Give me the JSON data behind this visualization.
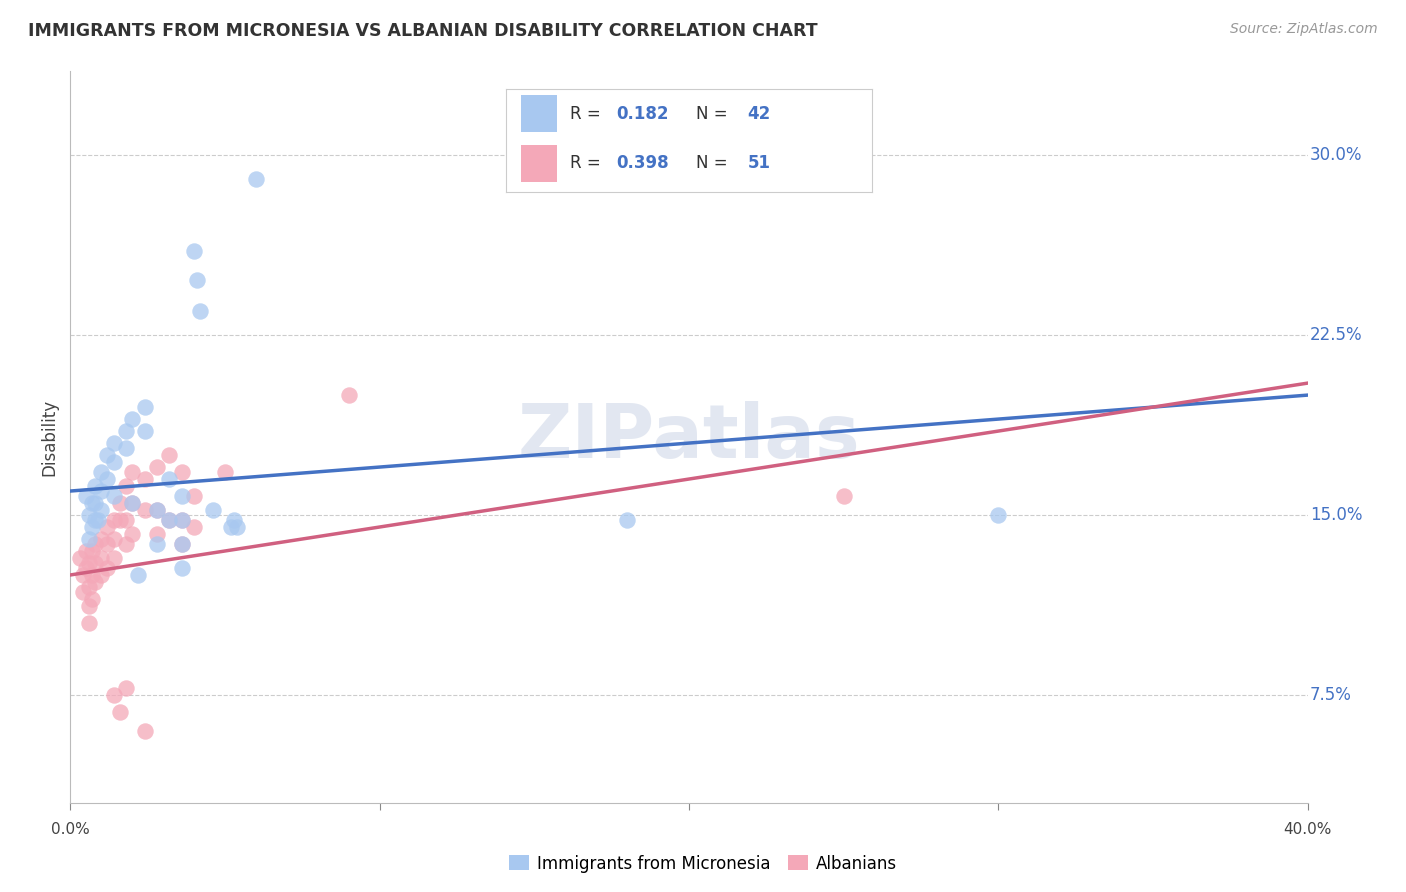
{
  "title": "IMMIGRANTS FROM MICRONESIA VS ALBANIAN DISABILITY CORRELATION CHART",
  "source": "Source: ZipAtlas.com",
  "ylabel": "Disability",
  "yticks": [
    0.075,
    0.15,
    0.225,
    0.3
  ],
  "ytick_labels": [
    "7.5%",
    "15.0%",
    "22.5%",
    "30.0%"
  ],
  "xlim": [
    0.0,
    0.4
  ],
  "ylim": [
    0.03,
    0.335
  ],
  "legend_blue_r": "0.182",
  "legend_blue_n": "42",
  "legend_pink_r": "0.398",
  "legend_pink_n": "51",
  "blue_color": "#a8c8f0",
  "pink_color": "#f4a8b8",
  "blue_line_color": "#4472c4",
  "pink_line_color": "#d06080",
  "blue_scatter": [
    [
      0.005,
      0.158
    ],
    [
      0.006,
      0.15
    ],
    [
      0.007,
      0.155
    ],
    [
      0.007,
      0.145
    ],
    [
      0.008,
      0.162
    ],
    [
      0.008,
      0.155
    ],
    [
      0.008,
      0.148
    ],
    [
      0.01,
      0.168
    ],
    [
      0.01,
      0.16
    ],
    [
      0.01,
      0.152
    ],
    [
      0.012,
      0.175
    ],
    [
      0.012,
      0.165
    ],
    [
      0.014,
      0.18
    ],
    [
      0.014,
      0.172
    ],
    [
      0.014,
      0.158
    ],
    [
      0.018,
      0.185
    ],
    [
      0.018,
      0.178
    ],
    [
      0.02,
      0.19
    ],
    [
      0.02,
      0.155
    ],
    [
      0.024,
      0.195
    ],
    [
      0.024,
      0.185
    ],
    [
      0.028,
      0.152
    ],
    [
      0.028,
      0.138
    ],
    [
      0.032,
      0.165
    ],
    [
      0.032,
      0.148
    ],
    [
      0.036,
      0.158
    ],
    [
      0.036,
      0.148
    ],
    [
      0.036,
      0.138
    ],
    [
      0.036,
      0.128
    ],
    [
      0.04,
      0.26
    ],
    [
      0.041,
      0.248
    ],
    [
      0.042,
      0.235
    ],
    [
      0.046,
      0.152
    ],
    [
      0.052,
      0.145
    ],
    [
      0.053,
      0.148
    ],
    [
      0.054,
      0.145
    ],
    [
      0.06,
      0.29
    ],
    [
      0.18,
      0.148
    ],
    [
      0.3,
      0.15
    ],
    [
      0.006,
      0.14
    ],
    [
      0.009,
      0.148
    ],
    [
      0.022,
      0.125
    ]
  ],
  "pink_scatter": [
    [
      0.003,
      0.132
    ],
    [
      0.004,
      0.125
    ],
    [
      0.004,
      0.118
    ],
    [
      0.005,
      0.135
    ],
    [
      0.006,
      0.13
    ],
    [
      0.006,
      0.12
    ],
    [
      0.006,
      0.112
    ],
    [
      0.007,
      0.135
    ],
    [
      0.007,
      0.125
    ],
    [
      0.007,
      0.115
    ],
    [
      0.008,
      0.138
    ],
    [
      0.008,
      0.13
    ],
    [
      0.008,
      0.122
    ],
    [
      0.01,
      0.14
    ],
    [
      0.01,
      0.132
    ],
    [
      0.01,
      0.125
    ],
    [
      0.012,
      0.145
    ],
    [
      0.012,
      0.138
    ],
    [
      0.012,
      0.128
    ],
    [
      0.014,
      0.148
    ],
    [
      0.014,
      0.14
    ],
    [
      0.014,
      0.132
    ],
    [
      0.016,
      0.155
    ],
    [
      0.016,
      0.148
    ],
    [
      0.018,
      0.162
    ],
    [
      0.018,
      0.148
    ],
    [
      0.018,
      0.138
    ],
    [
      0.02,
      0.168
    ],
    [
      0.02,
      0.155
    ],
    [
      0.02,
      0.142
    ],
    [
      0.024,
      0.165
    ],
    [
      0.024,
      0.152
    ],
    [
      0.028,
      0.17
    ],
    [
      0.028,
      0.152
    ],
    [
      0.028,
      0.142
    ],
    [
      0.032,
      0.175
    ],
    [
      0.032,
      0.148
    ],
    [
      0.036,
      0.168
    ],
    [
      0.036,
      0.148
    ],
    [
      0.036,
      0.138
    ],
    [
      0.04,
      0.158
    ],
    [
      0.04,
      0.145
    ],
    [
      0.05,
      0.168
    ],
    [
      0.014,
      0.075
    ],
    [
      0.016,
      0.068
    ],
    [
      0.018,
      0.078
    ],
    [
      0.024,
      0.06
    ],
    [
      0.09,
      0.2
    ],
    [
      0.25,
      0.158
    ],
    [
      0.005,
      0.128
    ],
    [
      0.006,
      0.105
    ]
  ],
  "watermark": "ZIPatlas",
  "background_color": "#ffffff",
  "grid_color": "#cccccc"
}
